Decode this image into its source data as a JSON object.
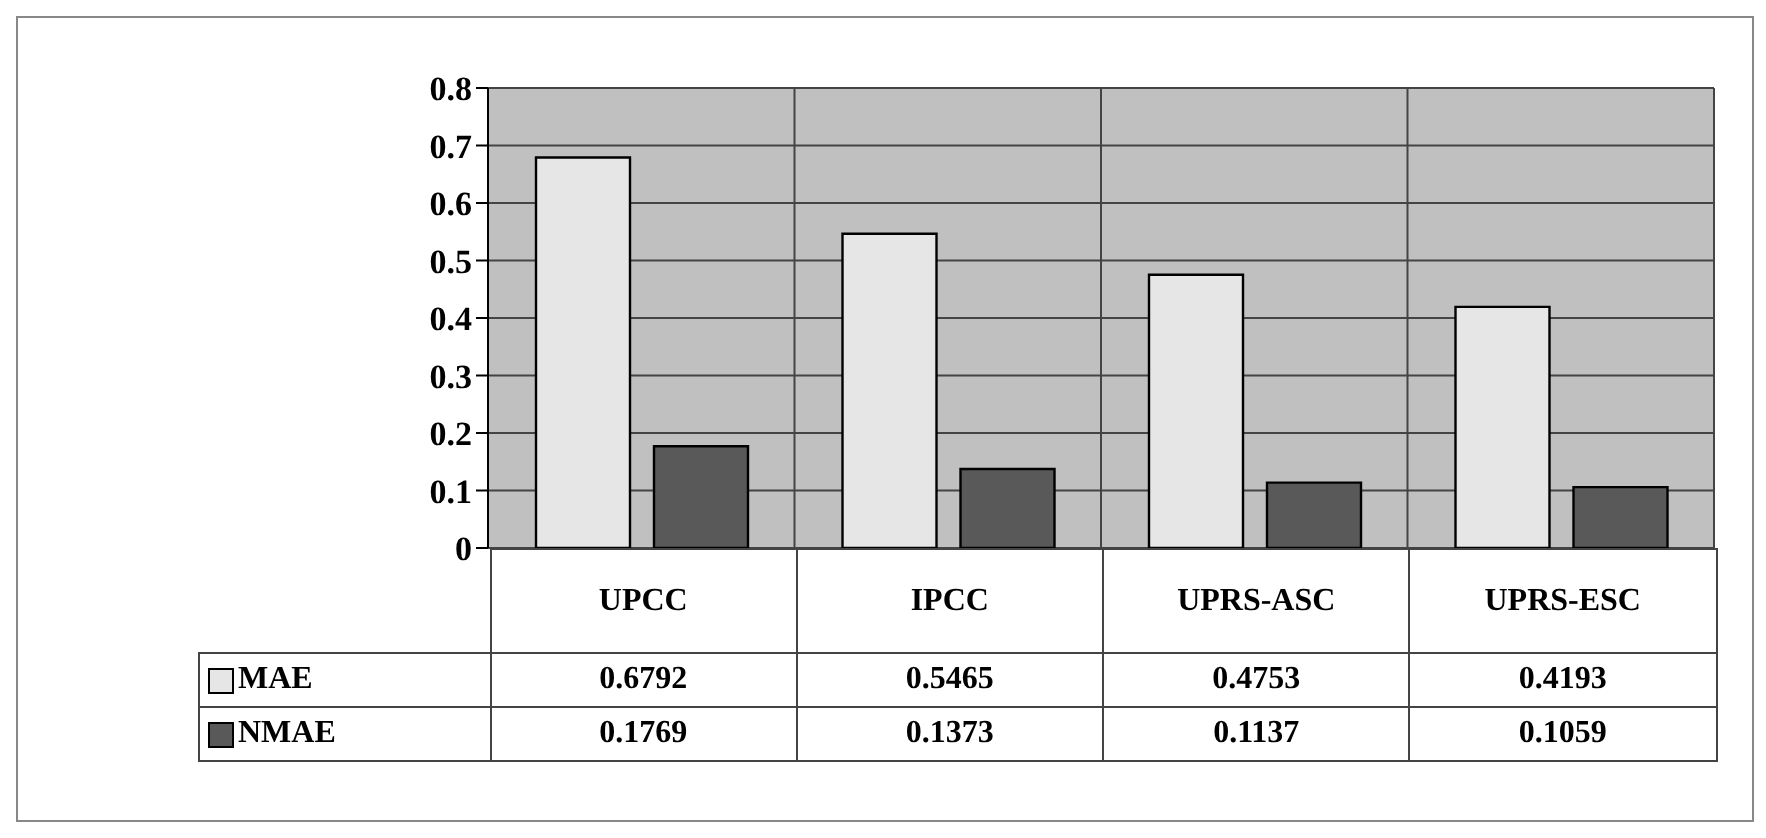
{
  "chart_data": {
    "type": "bar",
    "categories": [
      "UPCC",
      "IPCC",
      "UPRS-ASC",
      "UPRS-ESC"
    ],
    "series": [
      {
        "name": "MAE",
        "color": "#e6e6e6",
        "values": [
          0.6792,
          0.5465,
          0.4753,
          0.4193
        ]
      },
      {
        "name": "NMAE",
        "color": "#595959",
        "values": [
          0.1769,
          0.1373,
          0.1137,
          0.1059
        ]
      }
    ],
    "ylim": [
      0,
      0.8
    ],
    "yticks": [
      0,
      0.1,
      0.2,
      0.3,
      0.4,
      0.5,
      0.6,
      0.7,
      0.8
    ],
    "grid": true,
    "legend": "bottom",
    "data_labels": true
  }
}
